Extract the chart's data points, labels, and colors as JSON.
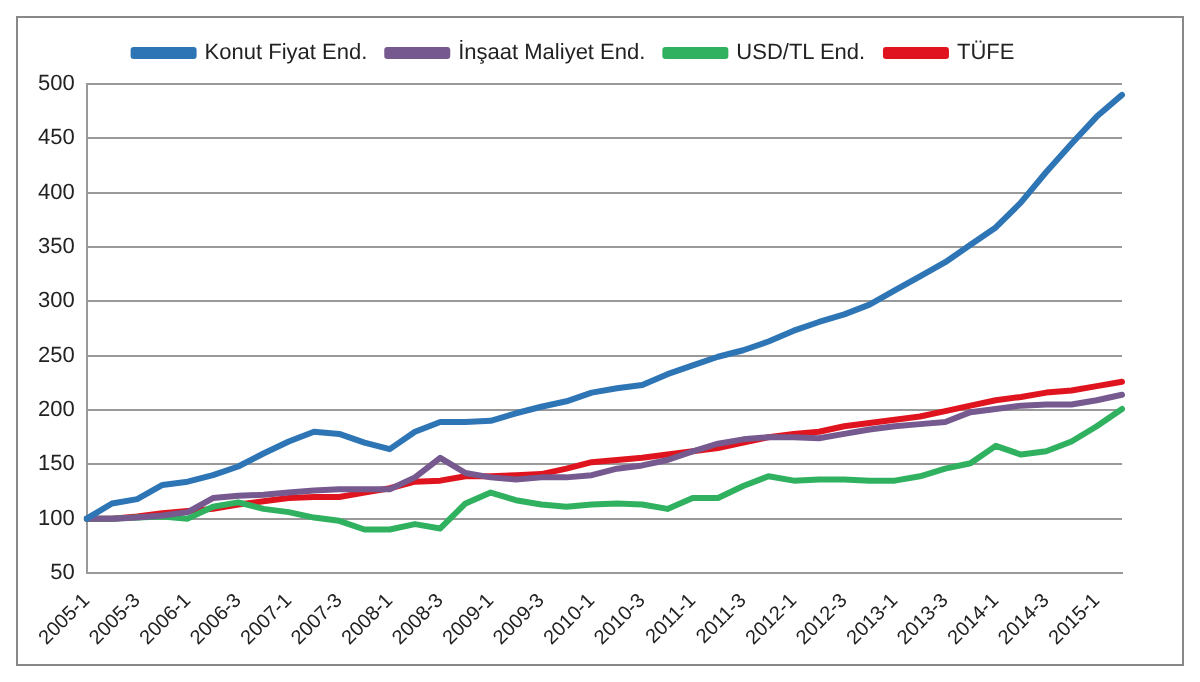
{
  "chart_data": {
    "type": "line",
    "categories": [
      "2005-1",
      null,
      "2005-3",
      null,
      "2006-1",
      null,
      "2006-3",
      null,
      "2007-1",
      null,
      "2007-3",
      null,
      "2008-1",
      null,
      "2008-3",
      null,
      "2009-1",
      null,
      "2009-3",
      null,
      "2010-1",
      null,
      "2010-3",
      null,
      "2011-1",
      null,
      "2011-3",
      null,
      "2012-1",
      null,
      "2012-3",
      null,
      "2013-1",
      null,
      "2013-3",
      null,
      "2014-1",
      null,
      "2014-3",
      null,
      "2015-1",
      null
    ],
    "series": [
      {
        "name": "Konut Fiyat End.",
        "color": "#2e75b6",
        "values": [
          100,
          114,
          118,
          131,
          134,
          140,
          148,
          160,
          171,
          180,
          178,
          170,
          164,
          180,
          189,
          189,
          190,
          197,
          203,
          208,
          216,
          220,
          223,
          233,
          241,
          249,
          255,
          263,
          273,
          281,
          288,
          297,
          310,
          323,
          336,
          352,
          368,
          391,
          419,
          445,
          470,
          490
        ]
      },
      {
        "name": "İnşaat Maliyet End.",
        "color": "#75598f",
        "values": [
          100,
          100,
          101,
          103,
          106,
          119,
          121,
          122,
          124,
          126,
          127,
          127,
          127,
          138,
          156,
          142,
          138,
          136,
          138,
          138,
          140,
          146,
          149,
          154,
          162,
          169,
          173,
          175,
          175,
          174,
          178,
          182,
          185,
          187,
          189,
          198,
          201,
          204,
          205,
          205,
          209,
          214
        ]
      },
      {
        "name": "USD/TL End.",
        "color": "#2fb160",
        "values": [
          100,
          100,
          101,
          102,
          100,
          111,
          115,
          109,
          106,
          101,
          98,
          90,
          90,
          95,
          91,
          114,
          124,
          117,
          113,
          111,
          113,
          114,
          113,
          109,
          119,
          119,
          130,
          139,
          135,
          136,
          136,
          135,
          135,
          139,
          146,
          151,
          167,
          159,
          162,
          171,
          185,
          201
        ]
      },
      {
        "name": "TÜFE",
        "color": "#e0141e",
        "values": [
          100,
          100,
          102,
          105,
          107,
          109,
          113,
          116,
          119,
          120,
          120,
          124,
          128,
          134,
          135,
          139,
          139,
          140,
          141,
          146,
          152,
          154,
          156,
          159,
          162,
          165,
          170,
          175,
          178,
          180,
          185,
          188,
          191,
          194,
          199,
          204,
          209,
          212,
          216,
          218,
          222,
          226
        ]
      }
    ],
    "ylim": [
      50,
      500
    ],
    "yticks": [
      50,
      100,
      150,
      200,
      250,
      300,
      350,
      400,
      450,
      500
    ],
    "grid": "y",
    "legend": "top",
    "marker": "none",
    "line_style": "solid"
  }
}
